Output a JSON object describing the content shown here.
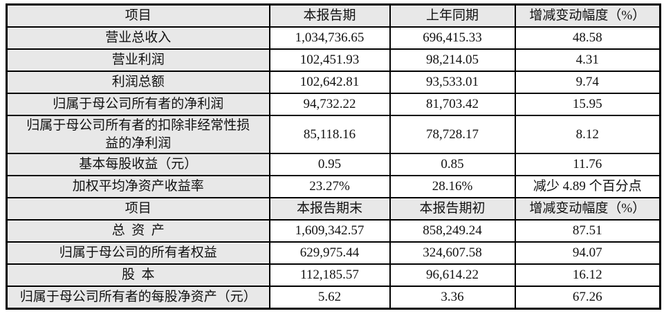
{
  "table": {
    "colors": {
      "header_bg": "#e8e8e8",
      "label_bg": "#e8e8e8",
      "value_bg": "#ffffff",
      "border": "#000000",
      "text": "#111111"
    },
    "sections": [
      {
        "header": [
          "项目",
          "本报告期",
          "上年同期",
          "增减变动幅度（%）"
        ],
        "rows": [
          {
            "item": "营业总收入",
            "current": "1,034,736.65",
            "prior": "696,415.33",
            "change": "48.58"
          },
          {
            "item": "营业利润",
            "current": "102,451.93",
            "prior": "98,214.05",
            "change": "4.31"
          },
          {
            "item": "利润总额",
            "current": "102,642.81",
            "prior": "93,533.01",
            "change": "9.74"
          },
          {
            "item": "归属于母公司所有者的净利润",
            "current": "94,732.22",
            "prior": "81,703.42",
            "change": "15.95"
          },
          {
            "item": "归属于母公司所有者的扣除非经常性损\n益的净利润",
            "current": "85,118.16",
            "prior": "78,728.17",
            "change": "8.12"
          },
          {
            "item": "基本每股收益（元）",
            "current": "0.95",
            "prior": "0.85",
            "change": "11.76"
          },
          {
            "item": "加权平均净资产收益率",
            "current": "23.27%",
            "prior": "28.16%",
            "change": "减少 4.89 个百分点"
          }
        ]
      },
      {
        "header": [
          "项目",
          "本报告期末",
          "本报告期初",
          "增减变动幅度（%）"
        ],
        "rows": [
          {
            "item": "总  资  产",
            "current": "1,609,342.57",
            "prior": "858,249.24",
            "change": "87.51"
          },
          {
            "item": "归属于母公司的所有者权益",
            "current": "629,975.44",
            "prior": "324,607.58",
            "change": "94.07"
          },
          {
            "item": "股  本",
            "current": "112,185.57",
            "prior": "96,614.22",
            "change": "16.12"
          },
          {
            "item": "归属于母公司所有者的每股净资产（元）",
            "current": "5.62",
            "prior": "3.36",
            "change": "67.26"
          }
        ]
      }
    ]
  }
}
